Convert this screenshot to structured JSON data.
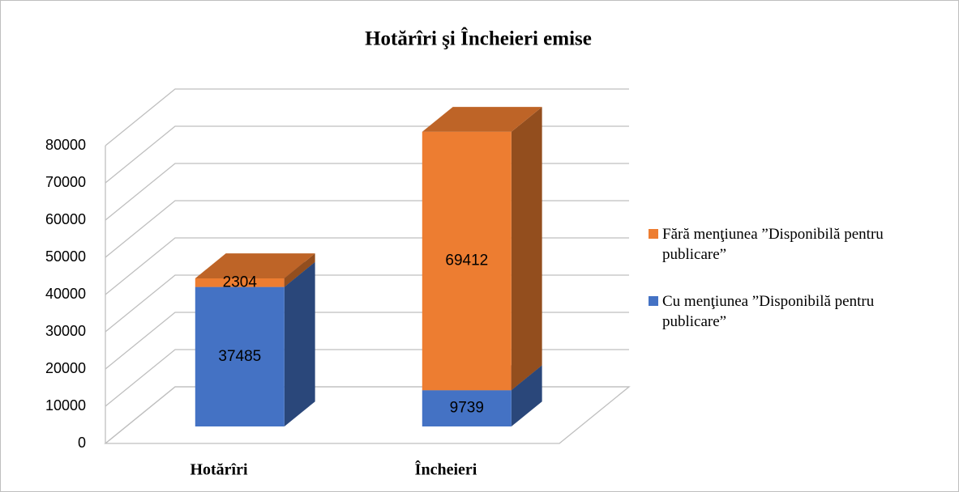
{
  "chart_data": {
    "type": "bar3d_stacked",
    "title": "Hotărîri şi Încheieri emise",
    "categories": [
      "Hotărîri",
      "Încheieri"
    ],
    "series": [
      {
        "name": "Cu menţiunea ”Disponibilă pentru publicare”",
        "color": "#4472c4",
        "values": [
          37485,
          9739
        ]
      },
      {
        "name": "Fără menţiunea ”Disponibilă pentru publicare”",
        "color": "#ed7d31",
        "values": [
          2304,
          69412
        ]
      }
    ],
    "ylim": [
      0,
      80000
    ],
    "yticks": [
      0,
      10000,
      20000,
      30000,
      40000,
      50000,
      60000,
      70000,
      80000
    ],
    "grid": true,
    "legend": "right"
  }
}
